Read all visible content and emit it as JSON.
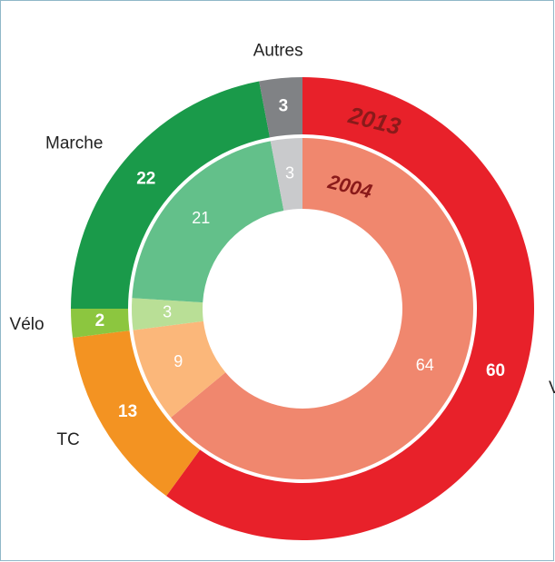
{
  "chart_data": {
    "type": "pie",
    "categories": [
      "VP",
      "TC",
      "Vélo",
      "Marche",
      "Autres"
    ],
    "series": [
      {
        "name": "2013",
        "values": [
          60,
          13,
          2,
          22,
          3
        ],
        "colors": [
          "#e8212a",
          "#f39322",
          "#8cc63f",
          "#1a9a4a",
          "#808285"
        ]
      },
      {
        "name": "2004",
        "values": [
          64,
          9,
          3,
          21,
          3
        ],
        "colors": [
          "#f0876e",
          "#fbb77a",
          "#b9df96",
          "#63c08a",
          "#c9cacc"
        ]
      }
    ]
  }
}
